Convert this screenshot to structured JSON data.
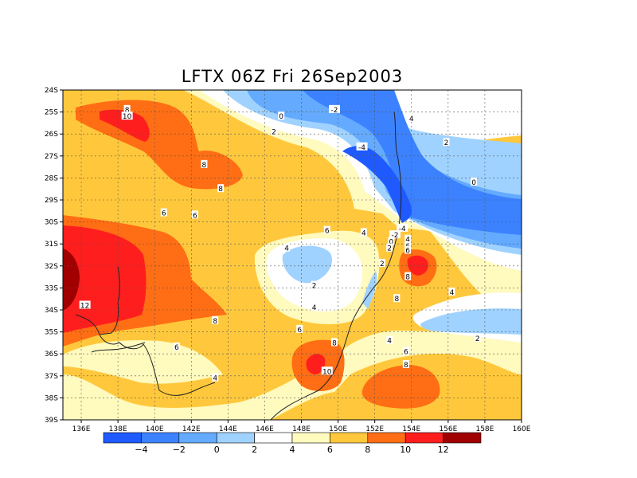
{
  "title": "LFTX 06Z Fri 26Sep2003",
  "map": {
    "lon_range": [
      135,
      160
    ],
    "lat_range": [
      -39,
      -24
    ],
    "grid": true,
    "x_ticks": [
      "136E",
      "138E",
      "140E",
      "142E",
      "144E",
      "146E",
      "148E",
      "150E",
      "152E",
      "154E",
      "156E",
      "158E",
      "160E"
    ],
    "y_ticks": [
      "24S",
      "25S",
      "26S",
      "27S",
      "28S",
      "29S",
      "30S",
      "31S",
      "32S",
      "33S",
      "34S",
      "35S",
      "36S",
      "37S",
      "38S",
      "39S"
    ],
    "contour_labels": [
      {
        "text": "8",
        "lon": 138.5,
        "lat": -24.9
      },
      {
        "text": "10",
        "lon": 138.5,
        "lat": -25.2
      },
      {
        "text": "0",
        "lon": 146.9,
        "lat": -25.2
      },
      {
        "text": "-2",
        "lon": 149.8,
        "lat": -24.9
      },
      {
        "text": "4",
        "lon": 154.0,
        "lat": -25.3
      },
      {
        "text": "2",
        "lon": 146.5,
        "lat": -25.9
      },
      {
        "text": "-4",
        "lon": 151.3,
        "lat": -26.6
      },
      {
        "text": "2",
        "lon": 155.9,
        "lat": -26.4
      },
      {
        "text": "8",
        "lon": 142.7,
        "lat": -27.4
      },
      {
        "text": "0",
        "lon": 157.4,
        "lat": -28.2
      },
      {
        "text": "8",
        "lon": 143.6,
        "lat": -28.5
      },
      {
        "text": "6",
        "lon": 140.5,
        "lat": -29.6
      },
      {
        "text": "6",
        "lon": 142.2,
        "lat": -29.7
      },
      {
        "text": "-4",
        "lon": 153.5,
        "lat": -30.3
      },
      {
        "text": "6",
        "lon": 149.4,
        "lat": -30.4
      },
      {
        "text": "4",
        "lon": 151.4,
        "lat": -30.5
      },
      {
        "text": "-2",
        "lon": 153.1,
        "lat": -30.6
      },
      {
        "text": "4",
        "lon": 153.8,
        "lat": -30.8
      },
      {
        "text": "0",
        "lon": 152.9,
        "lat": -30.9
      },
      {
        "text": "6",
        "lon": 153.8,
        "lat": -31.1
      },
      {
        "text": "2",
        "lon": 152.8,
        "lat": -31.2
      },
      {
        "text": "4",
        "lon": 147.2,
        "lat": -31.2
      },
      {
        "text": "6",
        "lon": 153.8,
        "lat": -31.3
      },
      {
        "text": "2",
        "lon": 152.4,
        "lat": -31.9
      },
      {
        "text": "8",
        "lon": 153.8,
        "lat": -32.5
      },
      {
        "text": "2",
        "lon": 148.7,
        "lat": -32.9
      },
      {
        "text": "4",
        "lon": 156.2,
        "lat": -33.2
      },
      {
        "text": "8",
        "lon": 153.2,
        "lat": -33.5
      },
      {
        "text": "12",
        "lon": 136.2,
        "lat": -33.8
      },
      {
        "text": "4",
        "lon": 148.7,
        "lat": -33.9
      },
      {
        "text": "8",
        "lon": 143.3,
        "lat": -34.5
      },
      {
        "text": "6",
        "lon": 147.9,
        "lat": -34.9
      },
      {
        "text": "2",
        "lon": 157.6,
        "lat": -35.3
      },
      {
        "text": "4",
        "lon": 152.8,
        "lat": -35.4
      },
      {
        "text": "8",
        "lon": 149.8,
        "lat": -35.5
      },
      {
        "text": "6",
        "lon": 141.2,
        "lat": -35.7
      },
      {
        "text": "6",
        "lon": 153.7,
        "lat": -35.9
      },
      {
        "text": "10",
        "lon": 149.4,
        "lat": -36.8
      },
      {
        "text": "8",
        "lon": 153.7,
        "lat": -36.5
      },
      {
        "text": "4",
        "lon": 143.3,
        "lat": -37.1
      }
    ]
  },
  "colorbar": {
    "labels": [
      "−4",
      "−2",
      "0",
      "2",
      "4",
      "6",
      "8",
      "10",
      "12"
    ],
    "colors": [
      "#1e5aff",
      "#3c82ff",
      "#64aaff",
      "#a0d2ff",
      "#ffffff",
      "#fffabe",
      "#ffc83c",
      "#ff6e14",
      "#ff1e1e",
      "#a00000"
    ]
  },
  "shade_colors": {
    "c10": "#ff1e1e",
    "c12": "#a00000",
    "c8": "#ff6e14",
    "c6": "#ffc83c",
    "c4": "#fffabe",
    "c2": "#ffffff",
    "c0": "#a0d2ff",
    "cm2": "#64aaff",
    "cm4": "#3c82ff",
    "cm6": "#1e5aff"
  }
}
